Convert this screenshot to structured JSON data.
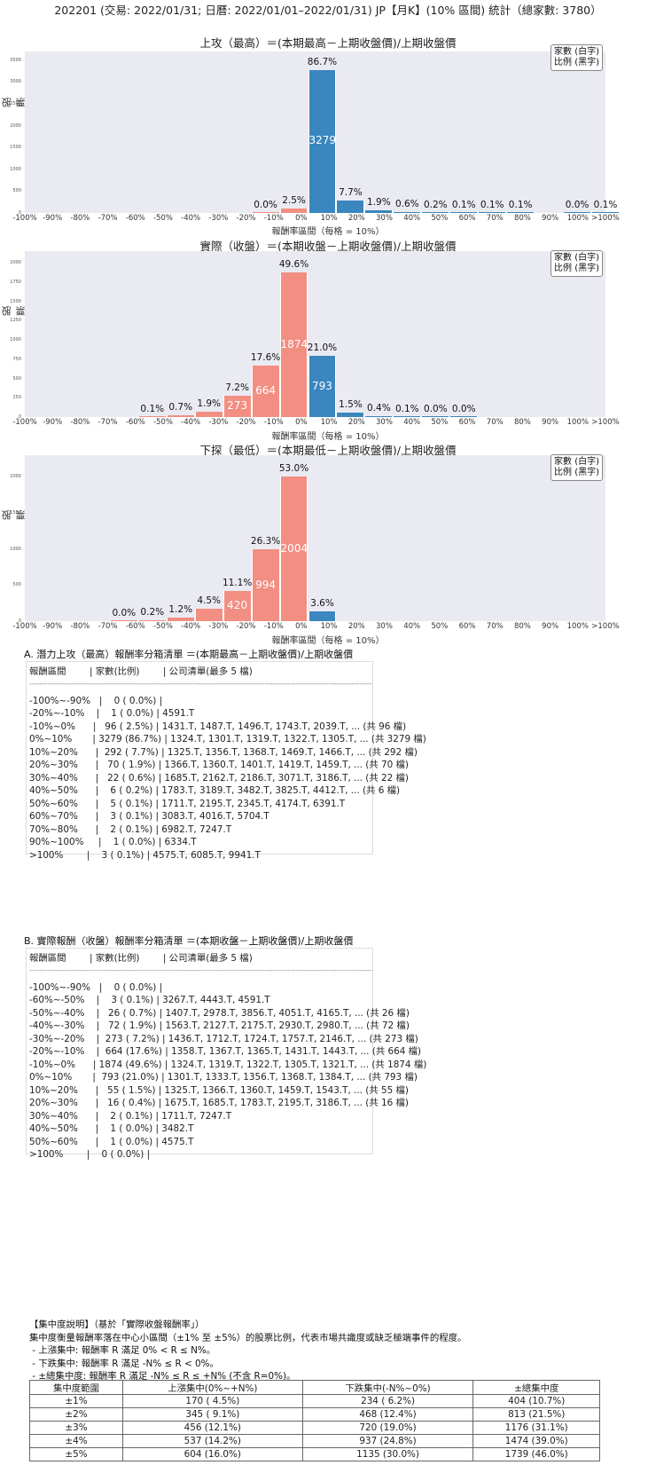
{
  "main_title": "202201 (交易: 2022/01/31; 日曆: 2022/01/01–2022/01/31) JP【月K】(10% 區間) 統計（總家數: 3780）",
  "legend": {
    "line1": "家數 (白字)",
    "line2": "比例 (黑字)"
  },
  "ylabel": "股票家數",
  "xlabel": "報酬率區間（每格 = 10%）",
  "x_ticks": [
    "-100%",
    "-90%",
    "-80%",
    "-70%",
    "-60%",
    "-50%",
    "-40%",
    "-30%",
    "-20%",
    "-10%",
    "0%",
    "10%",
    "20%",
    "30%",
    "40%",
    "50%",
    "60%",
    "70%",
    "80%",
    "90%",
    "100%",
    ">100%"
  ],
  "colors": {
    "negative": "#f28e82",
    "positive": "#3a86bf",
    "plot_bg": "#eaeaf2"
  },
  "chart_data": [
    {
      "type": "bar",
      "title": "上攻（最高）＝(本期最高－上期收盤價)/上期收盤價",
      "xlabel": "報酬率區間（每格 = 10%）",
      "ylabel": "股票家數",
      "ylim": [
        0,
        3700
      ],
      "yticks": [
        0,
        500,
        1000,
        1500,
        2000,
        2500,
        3000,
        3500
      ],
      "categories": [
        "-100%~-90%",
        "-90%~-80%",
        "-80%~-70%",
        "-70%~-60%",
        "-60%~-50%",
        "-50%~-40%",
        "-40%~-30%",
        "-30%~-20%",
        "-20%~-10%",
        "-10%~0%",
        "0%~10%",
        "10%~20%",
        "20%~30%",
        "30%~40%",
        "40%~50%",
        "50%~60%",
        "60%~70%",
        "70%~80%",
        "80%~90%",
        "90%~100%",
        ">100%"
      ],
      "values": [
        0,
        0,
        0,
        0,
        0,
        0,
        0,
        0,
        1,
        96,
        3279,
        292,
        70,
        22,
        6,
        5,
        3,
        2,
        0,
        1,
        3
      ],
      "pct_labels": [
        "",
        "",
        "",
        "",
        "",
        "",
        "",
        "",
        "0.0%",
        "2.5%",
        "86.7%",
        "7.7%",
        "1.9%",
        "0.6%",
        "0.2%",
        "0.1%",
        "0.1%",
        "0.1%",
        "",
        "0.0%",
        "0.1%"
      ]
    },
    {
      "type": "bar",
      "title": "實際（收盤）＝(本期收盤－上期收盤價)/上期收盤價",
      "xlabel": "報酬率區間（每格 = 10%）",
      "ylabel": "股票家數",
      "ylim": [
        0,
        2150
      ],
      "yticks": [
        0,
        250,
        500,
        750,
        1000,
        1250,
        1500,
        1750,
        2000
      ],
      "categories": [
        "-100%~-90%",
        "-90%~-80%",
        "-80%~-70%",
        "-70%~-60%",
        "-60%~-50%",
        "-50%~-40%",
        "-40%~-30%",
        "-30%~-20%",
        "-20%~-10%",
        "-10%~0%",
        "0%~10%",
        "10%~20%",
        "20%~30%",
        "30%~40%",
        "40%~50%",
        "50%~60%",
        "60%~70%",
        "70%~80%",
        "80%~90%",
        "90%~100%",
        ">100%"
      ],
      "values": [
        0,
        0,
        0,
        0,
        3,
        26,
        72,
        273,
        664,
        1874,
        793,
        55,
        16,
        2,
        1,
        1,
        0,
        0,
        0,
        0,
        0
      ],
      "pct_labels": [
        "",
        "",
        "",
        "",
        "0.1%",
        "0.7%",
        "1.9%",
        "7.2%",
        "17.6%",
        "49.6%",
        "21.0%",
        "1.5%",
        "0.4%",
        "0.1%",
        "0.0%",
        "0.0%",
        "",
        "",
        "",
        "",
        ""
      ]
    },
    {
      "type": "bar",
      "title": "下探（最低）＝(本期最低－上期收盤價)/上期收盤價",
      "xlabel": "報酬率區間（每格 = 10%）",
      "ylabel": "股票家數",
      "ylim": [
        0,
        2300
      ],
      "yticks": [
        0,
        500,
        1000,
        1500,
        2000
      ],
      "categories": [
        "-100%~-90%",
        "-90%~-80%",
        "-80%~-70%",
        "-70%~-60%",
        "-60%~-50%",
        "-50%~-40%",
        "-40%~-30%",
        "-30%~-20%",
        "-20%~-10%",
        "-10%~0%",
        "0%~10%",
        "10%~20%",
        "20%~30%",
        "30%~40%",
        "40%~50%",
        "50%~60%",
        "60%~70%",
        "70%~80%",
        "80%~90%",
        "90%~100%",
        ">100%"
      ],
      "values": [
        0,
        0,
        0,
        1,
        9,
        46,
        169,
        420,
        994,
        2004,
        137,
        0,
        0,
        0,
        0,
        0,
        0,
        0,
        0,
        0,
        0
      ],
      "pct_labels": [
        "",
        "",
        "",
        "0.0%",
        "0.2%",
        "1.2%",
        "4.5%",
        "11.1%",
        "26.3%",
        "53.0%",
        "3.6%",
        "",
        "",
        "",
        "",
        "",
        "",
        "",
        "",
        "",
        ""
      ]
    }
  ],
  "section_a": {
    "title": "A. 潛力上攻（最高）報酬率分箱清單 ＝(本期最高－上期收盤價)/上期收盤價",
    "header": "報酬區間        | 家數(比例)        | 公司清單(最多 5 檔)",
    "divider": "--------------------------------------------------------------------------------------------------------------------------------------------------------------",
    "rows": [
      "-100%~-90%   |    0 ( 0.0%) |",
      "-20%~-10%    |    1 ( 0.0%) | 4591.T",
      "-10%~0%      |   96 ( 2.5%) | 1431.T, 1487.T, 1496.T, 1743.T, 2039.T, ... (共 96 檔)",
      "0%~10%       | 3279 (86.7%) | 1324.T, 1301.T, 1319.T, 1322.T, 1305.T, ... (共 3279 檔)",
      "10%~20%      |  292 ( 7.7%) | 1325.T, 1356.T, 1368.T, 1469.T, 1466.T, ... (共 292 檔)",
      "20%~30%      |   70 ( 1.9%) | 1366.T, 1360.T, 1401.T, 1419.T, 1459.T, ... (共 70 檔)",
      "30%~40%      |   22 ( 0.6%) | 1685.T, 2162.T, 2186.T, 3071.T, 3186.T, ... (共 22 檔)",
      "40%~50%      |    6 ( 0.2%) | 1783.T, 3189.T, 3482.T, 3825.T, 4412.T, ... (共 6 檔)",
      "50%~60%      |    5 ( 0.1%) | 1711.T, 2195.T, 2345.T, 4174.T, 6391.T",
      "60%~70%      |    3 ( 0.1%) | 3083.T, 4016.T, 5704.T",
      "70%~80%      |    2 ( 0.1%) | 6982.T, 7247.T",
      "90%~100%     |    1 ( 0.0%) | 6334.T",
      ">100%        |    3 ( 0.1%) | 4575.T, 6085.T, 9941.T"
    ]
  },
  "section_b": {
    "title": "B. 實際報酬（收盤）報酬率分箱清單 ＝(本期收盤－上期收盤價)/上期收盤價",
    "header": "報酬區間        | 家數(比例)        | 公司清單(最多 5 檔)",
    "divider": "--------------------------------------------------------------------------------------------------------------------------------------------------------------",
    "rows": [
      "-100%~-90%   |    0 ( 0.0%) |",
      "-60%~-50%    |    3 ( 0.1%) | 3267.T, 4443.T, 4591.T",
      "-50%~-40%    |   26 ( 0.7%) | 1407.T, 2978.T, 3856.T, 4051.T, 4165.T, ... (共 26 檔)",
      "-40%~-30%    |   72 ( 1.9%) | 1563.T, 2127.T, 2175.T, 2930.T, 2980.T, ... (共 72 檔)",
      "-30%~-20%    |  273 ( 7.2%) | 1436.T, 1712.T, 1724.T, 1757.T, 2146.T, ... (共 273 檔)",
      "-20%~-10%    |  664 (17.6%) | 1358.T, 1367.T, 1365.T, 1431.T, 1443.T, ... (共 664 檔)",
      "-10%~0%      | 1874 (49.6%) | 1324.T, 1319.T, 1322.T, 1305.T, 1321.T, ... (共 1874 檔)",
      "0%~10%       |  793 (21.0%) | 1301.T, 1333.T, 1356.T, 1368.T, 1384.T, ... (共 793 檔)",
      "10%~20%      |   55 ( 1.5%) | 1325.T, 1366.T, 1360.T, 1459.T, 1543.T, ... (共 55 檔)",
      "20%~30%      |   16 ( 0.4%) | 1675.T, 1685.T, 1783.T, 2195.T, 3186.T, ... (共 16 檔)",
      "30%~40%      |    2 ( 0.1%) | 1711.T, 7247.T",
      "40%~50%      |    1 ( 0.0%) | 3482.T",
      "50%~60%      |    1 ( 0.0%) | 4575.T",
      ">100%        |    0 ( 0.0%) |"
    ]
  },
  "concentration": {
    "title": "【集中度說明】（基於「實際收盤報酬率」）",
    "desc": "集中度衡量報酬率落在中心小區間（±1% 至 ±5%）的股票比例，代表市場共識度或缺乏極端事件的程度。",
    "bullets": [
      " - 上漲集中: 報酬率 R 滿足 0% < R ≤ N%。",
      " - 下跌集中: 報酬率 R 滿足 -N% ≤ R < 0%。",
      " - ±總集中度: 報酬率 R 滿足 -N% ≤ R ≤ +N% (不含 R=0%)。"
    ],
    "table": {
      "headers": [
        "集中度範圍",
        "上漲集中(0%~+N%)",
        "下跌集中(-N%~0%)",
        "±總集中度"
      ],
      "rows": [
        [
          "±1%",
          "170 ( 4.5%)",
          "234 ( 6.2%)",
          "404 (10.7%)"
        ],
        [
          "±2%",
          "345 ( 9.1%)",
          "468 (12.4%)",
          "813 (21.5%)"
        ],
        [
          "±3%",
          "456 (12.1%)",
          "720 (19.0%)",
          "1176 (31.1%)"
        ],
        [
          "±4%",
          "537 (14.2%)",
          "937 (24.8%)",
          "1474 (39.0%)"
        ],
        [
          "±5%",
          "604 (16.0%)",
          "1135 (30.0%)",
          "1739 (46.0%)"
        ]
      ]
    }
  }
}
